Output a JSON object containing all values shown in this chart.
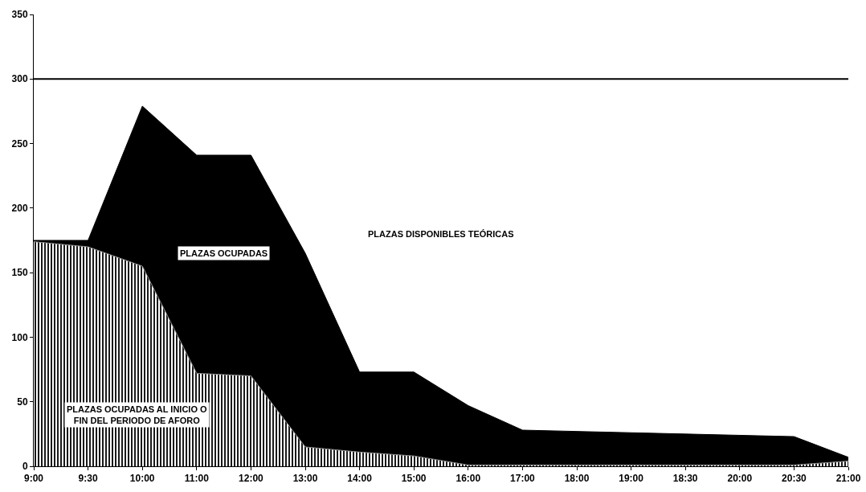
{
  "chart_data": {
    "type": "area",
    "categories": [
      "9:00",
      "9:30",
      "10:00",
      "11:00",
      "12:00",
      "13:00",
      "14:00",
      "15:00",
      "16:00",
      "17:00",
      "18:00",
      "19:00",
      "18:30",
      "20:00",
      "20:30",
      "21:00"
    ],
    "series": [
      {
        "name": "PLAZAS DISPONIBLES TEÓRICAS",
        "color": "#ffffff",
        "values": [
          300,
          300,
          300,
          300,
          300,
          300,
          300,
          300,
          300,
          300,
          300,
          300,
          300,
          300,
          300,
          300
        ]
      },
      {
        "name": "PLAZAS OCUPADAS",
        "color": "#000000",
        "values": [
          175,
          175,
          279,
          241,
          241,
          165,
          73,
          73,
          47,
          28,
          27,
          26,
          25,
          24,
          23,
          7
        ]
      },
      {
        "name": "PLAZAS OCUPADAS AL INICIO O FIN DEL PERIODO DE AFORO",
        "color": "#8c8c8c",
        "values": [
          174,
          170,
          155,
          72,
          70,
          15,
          11,
          8,
          1,
          1,
          1,
          1,
          1,
          1,
          1,
          4
        ]
      }
    ],
    "ylim": [
      0,
      350
    ],
    "yticks": [
      0,
      50,
      100,
      150,
      200,
      250,
      300,
      350
    ],
    "grid": false,
    "legend": false
  }
}
